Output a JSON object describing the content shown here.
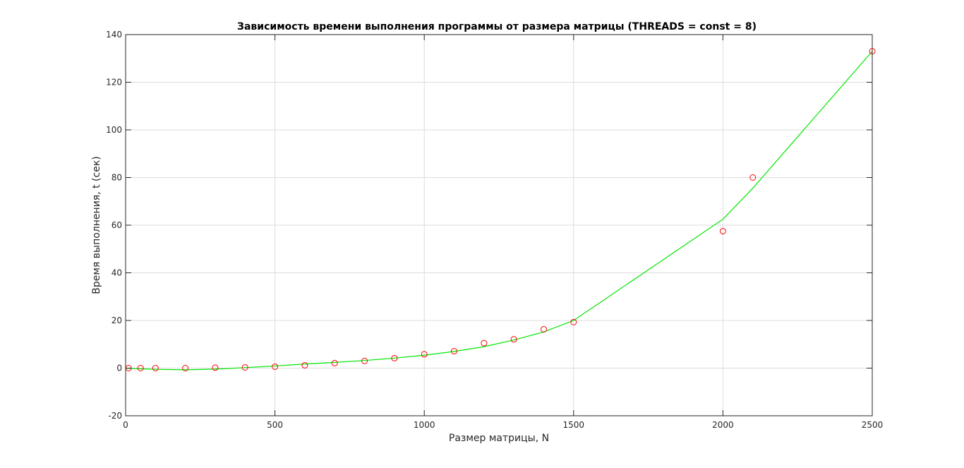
{
  "chart_data": {
    "type": "line",
    "title": "Зависимость времени выполнения программы от размера матрицы (THREADS = const = 8)",
    "xlabel": "Размер матрицы, N",
    "ylabel": "Время выполнения, t (сек)",
    "xlim": [
      0,
      2500
    ],
    "ylim": [
      -20,
      140
    ],
    "xticks": [
      0,
      500,
      1000,
      1500,
      2000,
      2500
    ],
    "yticks": [
      -20,
      0,
      20,
      40,
      60,
      80,
      100,
      120,
      140
    ],
    "xtick_labels": [
      "0",
      "500",
      "1000",
      "1500",
      "2000",
      "2500"
    ],
    "ytick_labels": [
      "-20",
      "0",
      "20",
      "40",
      "60",
      "80",
      "100",
      "120",
      "140"
    ],
    "grid": true,
    "series": [
      {
        "kind": "markers",
        "marker": "circle-open",
        "color": "#ff0000",
        "x": [
          10,
          50,
          100,
          200,
          300,
          400,
          500,
          600,
          700,
          800,
          900,
          1000,
          1100,
          1200,
          1300,
          1400,
          1500,
          2000,
          2100,
          2500
        ],
        "y": [
          0.0,
          0.0,
          0.0,
          0.0,
          0.2,
          0.3,
          0.6,
          1.2,
          2.1,
          3.0,
          4.2,
          5.8,
          7.1,
          10.5,
          12.1,
          16.3,
          19.3,
          57.5,
          80.0,
          133.0
        ]
      },
      {
        "kind": "line",
        "color": "#00e600",
        "x": [
          0,
          50,
          100,
          200,
          300,
          400,
          500,
          600,
          700,
          800,
          900,
          1000,
          1100,
          1200,
          1300,
          1400,
          1500,
          2000,
          2100,
          2500
        ],
        "y": [
          0.0,
          -0.3,
          -0.5,
          -0.7,
          -0.4,
          0.2,
          0.9,
          1.7,
          2.4,
          3.2,
          4.2,
          5.4,
          7.0,
          9.0,
          11.8,
          15.2,
          20.0,
          62.5,
          75.5,
          133.0
        ]
      }
    ],
    "colors": {
      "axes": "#262626",
      "grid": "#dcdcdc",
      "background": "#ffffff"
    }
  }
}
